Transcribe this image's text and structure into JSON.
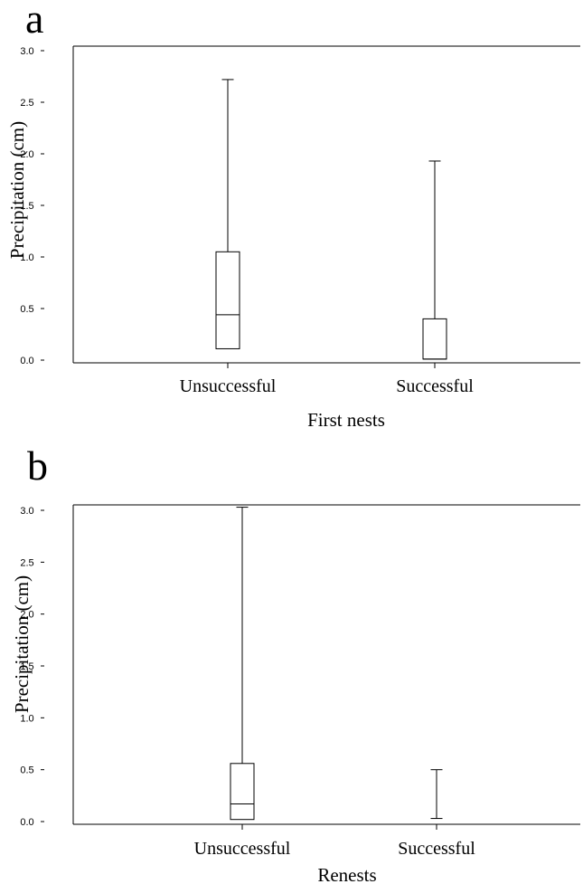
{
  "chart_data": [
    {
      "type": "box",
      "panel_label": "a",
      "xlabel": "First nests",
      "ylabel": "Precipitation (cm)",
      "ylim": [
        0.0,
        3.0
      ],
      "yticks": [
        "0.0",
        "0.5",
        "1.0",
        "1.5",
        "2.0",
        "2.5",
        "3.0"
      ],
      "categories": [
        "Unsuccessful",
        "Successful"
      ],
      "boxes": [
        {
          "category": "Unsuccessful",
          "min": 0.0,
          "q1": 0.11,
          "median": 0.44,
          "q3": 1.05,
          "max": 2.72
        },
        {
          "category": "Successful",
          "min": 0.0,
          "q1": 0.01,
          "median": 0.01,
          "q3": 0.4,
          "max": 1.93
        }
      ]
    },
    {
      "type": "box",
      "panel_label": "b",
      "xlabel": "Renests",
      "ylabel": "Precipitation (cm)",
      "ylim": [
        0.0,
        3.0
      ],
      "yticks": [
        "0.0",
        "0.5",
        "1.0",
        "1.5",
        "2.0",
        "2.5",
        "3.0"
      ],
      "categories": [
        "Unsuccessful",
        "Successful"
      ],
      "boxes": [
        {
          "category": "Unsuccessful",
          "min": 0.0,
          "q1": 0.02,
          "median": 0.17,
          "q3": 0.56,
          "max": 3.03
        },
        {
          "category": "Successful",
          "min": 0.0,
          "q1": 0.03,
          "median": 0.03,
          "q3": 0.03,
          "max": 0.5
        }
      ]
    }
  ]
}
